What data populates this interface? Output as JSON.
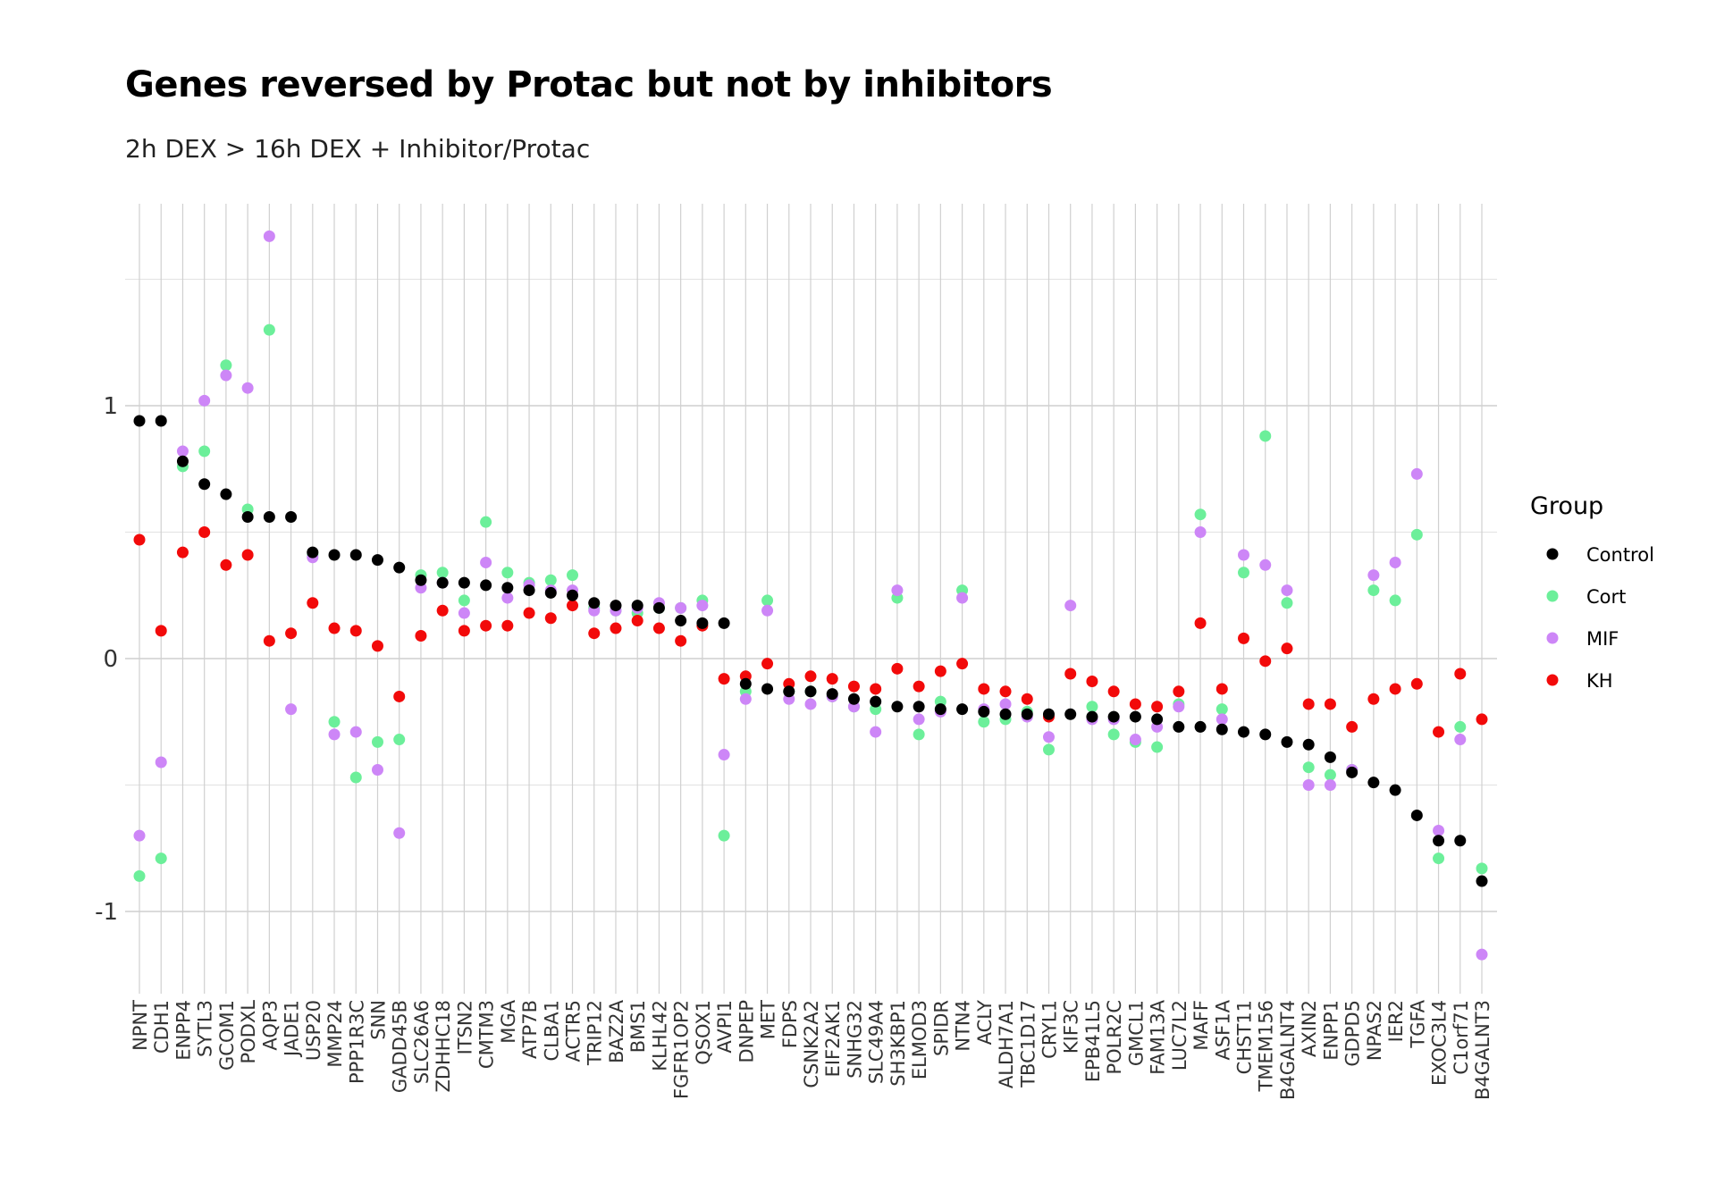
{
  "chart_data": {
    "type": "scatter",
    "title": "Genes reversed by Protac but not by inhibitors",
    "subtitle": "2h DEX > 16h DEX + Inhibitor/Protac",
    "xlabel": "",
    "ylabel": "",
    "ylim": [
      -1.3,
      1.8
    ],
    "yticks": [
      -1,
      0,
      1
    ],
    "ytick_labels": [
      "-1",
      "0",
      "1"
    ],
    "grid": true,
    "legend": {
      "title": "Group",
      "position": "right"
    },
    "categories": [
      "NPNT",
      "CDH1",
      "ENPP4",
      "SYTL3",
      "GCOM1",
      "PODXL",
      "AQP3",
      "JADE1",
      "USP20",
      "MMP24",
      "PPP1R3C",
      "SNN",
      "GADD45B",
      "SLC26A6",
      "ZDHHC18",
      "ITSN2",
      "CMTM3",
      "MGA",
      "ATP7B",
      "CLBA1",
      "ACTR5",
      "TRIP12",
      "BAZ2A",
      "BMS1",
      "KLHL42",
      "FGFR1OP2",
      "QSOX1",
      "AVPI1",
      "DNPEP",
      "MET",
      "FDPS",
      "CSNK2A2",
      "EIF2AK1",
      "SNHG32",
      "SLC49A4",
      "SH3KBP1",
      "ELMOD3",
      "SPIDR",
      "NTN4",
      "ACLY",
      "ALDH7A1",
      "TBC1D17",
      "CRYL1",
      "KIF3C",
      "EPB41L5",
      "POLR2C",
      "GMCL1",
      "FAM13A",
      "LUC7L2",
      "MAFF",
      "ASF1A",
      "CHST11",
      "TMEM156",
      "B4GALNT4",
      "AXIN2",
      "ENPP1",
      "GDPD5",
      "NPAS2",
      "IER2",
      "TGFA",
      "EXOC3L4",
      "C1orf71",
      "B4GALNT3"
    ],
    "series": [
      {
        "name": "Control",
        "color": "#000000",
        "values": [
          0.94,
          0.94,
          0.78,
          0.69,
          0.65,
          0.56,
          0.56,
          0.56,
          0.42,
          0.41,
          0.41,
          0.39,
          0.36,
          0.31,
          0.3,
          0.3,
          0.29,
          0.28,
          0.27,
          0.26,
          0.25,
          0.22,
          0.21,
          0.21,
          0.2,
          0.15,
          0.14,
          0.14,
          -0.1,
          -0.12,
          -0.13,
          -0.13,
          -0.14,
          -0.16,
          -0.17,
          -0.19,
          -0.19,
          -0.2,
          -0.2,
          -0.21,
          -0.22,
          -0.22,
          -0.22,
          -0.22,
          -0.23,
          -0.23,
          -0.23,
          -0.24,
          -0.27,
          -0.27,
          -0.28,
          -0.29,
          -0.3,
          -0.33,
          -0.34,
          -0.39,
          -0.45,
          -0.49,
          -0.52,
          -0.62,
          -0.72,
          -0.72,
          -0.88
        ]
      },
      {
        "name": "Cort",
        "color": "#6CEF9A",
        "values": [
          -0.86,
          -0.79,
          0.76,
          0.82,
          1.16,
          0.59,
          1.3,
          null,
          0.41,
          -0.25,
          -0.47,
          -0.33,
          -0.32,
          0.33,
          0.34,
          0.23,
          0.54,
          0.34,
          0.3,
          0.31,
          0.33,
          0.2,
          0.19,
          0.18,
          0.2,
          0.2,
          0.23,
          -0.7,
          -0.13,
          0.23,
          -0.13,
          -0.13,
          -0.15,
          -0.19,
          -0.2,
          0.24,
          -0.3,
          -0.17,
          0.27,
          -0.25,
          -0.24,
          -0.21,
          -0.36,
          null,
          -0.19,
          -0.3,
          -0.33,
          -0.35,
          -0.18,
          0.57,
          -0.2,
          0.34,
          0.88,
          0.22,
          -0.43,
          -0.46,
          -0.44,
          0.27,
          0.23,
          0.49,
          -0.79,
          -0.27,
          -0.83
        ]
      },
      {
        "name": "MIF",
        "color": "#CD86F7",
        "values": [
          -0.7,
          -0.41,
          0.82,
          1.02,
          1.12,
          1.07,
          1.67,
          -0.2,
          0.4,
          -0.3,
          -0.29,
          -0.44,
          -0.69,
          0.28,
          0.3,
          0.18,
          0.38,
          0.24,
          0.29,
          0.27,
          0.27,
          0.19,
          0.19,
          0.2,
          0.22,
          0.2,
          0.21,
          -0.38,
          -0.16,
          0.19,
          -0.16,
          -0.18,
          -0.15,
          -0.19,
          -0.29,
          0.27,
          -0.24,
          -0.21,
          0.24,
          -0.2,
          -0.18,
          -0.23,
          -0.31,
          0.21,
          -0.24,
          -0.24,
          -0.32,
          -0.27,
          -0.19,
          0.5,
          -0.24,
          0.41,
          0.37,
          0.27,
          -0.5,
          -0.5,
          -0.44,
          0.33,
          0.38,
          0.73,
          -0.68,
          -0.32,
          -1.17
        ]
      },
      {
        "name": "KH",
        "color": "#F20A0A",
        "values": [
          0.47,
          0.11,
          0.42,
          0.5,
          0.37,
          0.41,
          0.07,
          0.1,
          0.22,
          0.12,
          0.11,
          0.05,
          -0.15,
          0.09,
          0.19,
          0.11,
          0.13,
          0.13,
          0.18,
          0.16,
          0.21,
          0.1,
          0.12,
          0.15,
          0.12,
          0.07,
          0.13,
          -0.08,
          -0.07,
          -0.02,
          -0.1,
          -0.07,
          -0.08,
          -0.11,
          -0.12,
          -0.04,
          -0.11,
          -0.05,
          -0.02,
          -0.12,
          -0.13,
          -0.16,
          -0.23,
          -0.06,
          -0.09,
          -0.13,
          -0.18,
          -0.19,
          -0.13,
          0.14,
          -0.12,
          0.08,
          -0.01,
          0.04,
          -0.18,
          -0.18,
          -0.27,
          -0.16,
          -0.12,
          -0.1,
          -0.29,
          -0.06,
          -0.24
        ]
      }
    ]
  }
}
